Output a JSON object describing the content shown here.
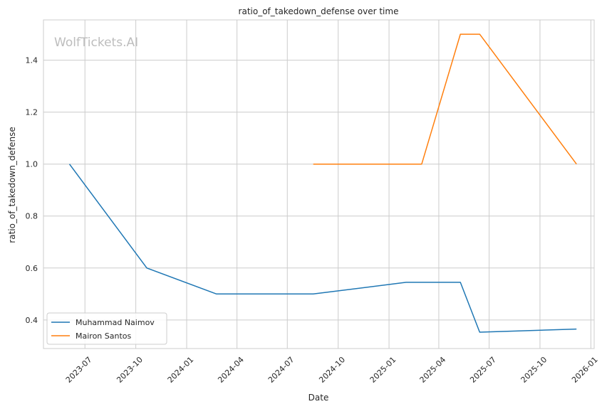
{
  "chart_data": {
    "type": "line",
    "title": "ratio_of_takedown_defense over time",
    "xlabel": "Date",
    "ylabel": "ratio_of_takedown_defense",
    "watermark": "WolfTickets.AI",
    "x_tick_labels": [
      "2023-07",
      "2023-10",
      "2024-01",
      "2024-04",
      "2024-07",
      "2024-10",
      "2025-01",
      "2025-04",
      "2025-07",
      "2025-10",
      "2026-01"
    ],
    "x_tick_dates": [
      "2023-07-01",
      "2023-10-01",
      "2024-01-01",
      "2024-04-01",
      "2024-07-01",
      "2024-10-01",
      "2025-01-01",
      "2025-04-01",
      "2025-07-01",
      "2025-10-01",
      "2026-01-01"
    ],
    "y_ticks": [
      0.4,
      0.6,
      0.8,
      1.0,
      1.2,
      1.4
    ],
    "y_tick_labels": [
      "0.4",
      "0.6",
      "0.8",
      "1.0",
      "1.2",
      "1.4"
    ],
    "xlim": [
      "2023-04-17",
      "2026-01-07"
    ],
    "ylim": [
      0.29,
      1.555
    ],
    "grid": true,
    "legend_position": "lower-left",
    "series": [
      {
        "name": "Muhammad Naimov",
        "color": "#1f77b4",
        "points": [
          {
            "x": "2023-06-03",
            "y": 1.0
          },
          {
            "x": "2023-10-21",
            "y": 0.6
          },
          {
            "x": "2024-02-24",
            "y": 0.5
          },
          {
            "x": "2024-08-17",
            "y": 0.5
          },
          {
            "x": "2025-02-01",
            "y": 0.545
          },
          {
            "x": "2025-05-10",
            "y": 0.545
          },
          {
            "x": "2025-06-14",
            "y": 0.353
          },
          {
            "x": "2025-12-06",
            "y": 0.365
          }
        ]
      },
      {
        "name": "Mairon Santos",
        "color": "#ff7f0e",
        "points": [
          {
            "x": "2024-08-17",
            "y": 1.0
          },
          {
            "x": "2025-03-01",
            "y": 1.0
          },
          {
            "x": "2025-05-10",
            "y": 1.5
          },
          {
            "x": "2025-06-14",
            "y": 1.5
          },
          {
            "x": "2025-12-06",
            "y": 1.0
          }
        ]
      }
    ]
  }
}
